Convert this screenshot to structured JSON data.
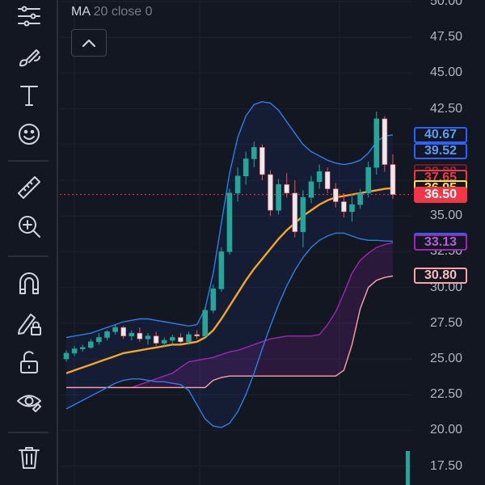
{
  "toolbar": {
    "tools": [
      {
        "name": "indicators-icon"
      },
      {
        "name": "brush-icon"
      },
      {
        "name": "text-tool-icon"
      },
      {
        "name": "emoji-icon"
      },
      {
        "name": "ruler-icon"
      },
      {
        "name": "zoom-in-icon"
      },
      {
        "name": "magnet-icon"
      },
      {
        "name": "lock-drawing-icon"
      },
      {
        "name": "unlock-icon"
      },
      {
        "name": "eye-icon"
      },
      {
        "name": "trash-icon"
      }
    ]
  },
  "legend": {
    "name": "MA",
    "params": "20 close 0"
  },
  "collapse_button": {
    "icon": "chevron-up-icon"
  },
  "price_axis": {
    "ticks": [
      "50.00",
      "47.50",
      "45.00",
      "42.50",
      "40.00",
      "37.50",
      "35.00",
      "32.50",
      "30.00",
      "27.50",
      "25.00",
      "22.50",
      "20.00",
      "17.50"
    ]
  },
  "price_labels": [
    {
      "value": "40.67",
      "color": "#2962ff",
      "text_color": "#5b9cf6"
    },
    {
      "value": "39.52",
      "color": "#2962ff",
      "text_color": "#5b9cf6"
    },
    {
      "value": "38.08",
      "color": "#6b1f26",
      "text_color": "#8c2a30"
    },
    {
      "value": "37.65",
      "color": "#f23645",
      "text_color": "#f23645"
    },
    {
      "value": "36.95",
      "color": "#ff9800",
      "text_color": "#ff9800"
    },
    {
      "value": "36.95",
      "color": "#f7e64a",
      "text_color": "#f7e64a",
      "fill": "#131722"
    },
    {
      "value": "36.50",
      "color": "#f23645",
      "text_color": "#ffffff",
      "fill": "#f23645"
    },
    {
      "value": "33.23",
      "color": "#2962ff",
      "text_color": "#5b9cf6"
    },
    {
      "value": "33.13",
      "color": "#9c27b0",
      "text_color": "#b35fd1"
    },
    {
      "value": "30.80",
      "color": "#f8a5a5",
      "text_color": "#f8bcbc"
    }
  ],
  "chart_data": {
    "type": "candlestick",
    "indicators": [
      "MA 20 close",
      "Bollinger Bands",
      "Ichimoku Cloud"
    ],
    "ylim": [
      17.5,
      50.0
    ],
    "last_price": 36.5,
    "ohlc": [
      [
        25.0,
        25.6,
        24.8,
        25.4
      ],
      [
        25.4,
        25.9,
        25.2,
        25.7
      ],
      [
        25.7,
        26.0,
        25.5,
        25.8
      ],
      [
        25.8,
        26.4,
        25.7,
        26.2
      ],
      [
        26.2,
        26.8,
        26.0,
        26.5
      ],
      [
        26.5,
        27.0,
        26.3,
        26.9
      ],
      [
        26.9,
        27.4,
        26.7,
        27.2
      ],
      [
        27.2,
        27.3,
        26.4,
        26.6
      ],
      [
        26.6,
        27.0,
        26.3,
        26.8
      ],
      [
        26.8,
        27.2,
        26.2,
        26.4
      ],
      [
        26.4,
        26.8,
        26.0,
        26.6
      ],
      [
        26.6,
        26.9,
        25.9,
        26.1
      ],
      [
        26.1,
        26.5,
        25.8,
        26.3
      ],
      [
        26.3,
        26.7,
        26.0,
        26.5
      ],
      [
        26.5,
        26.8,
        26.1,
        26.2
      ],
      [
        26.2,
        26.9,
        26.0,
        26.7
      ],
      [
        26.7,
        27.0,
        26.4,
        26.6
      ],
      [
        26.6,
        28.6,
        26.5,
        28.4
      ],
      [
        28.4,
        30.2,
        28.2,
        29.9
      ],
      [
        29.9,
        32.8,
        29.7,
        32.5
      ],
      [
        32.5,
        36.9,
        32.3,
        36.6
      ],
      [
        36.6,
        38.4,
        36.0,
        37.8
      ],
      [
        37.8,
        39.5,
        37.2,
        39.0
      ],
      [
        39.0,
        40.2,
        38.4,
        39.8
      ],
      [
        39.8,
        40.0,
        37.5,
        37.9
      ],
      [
        37.9,
        38.2,
        35.0,
        35.4
      ],
      [
        35.4,
        37.6,
        35.1,
        37.2
      ],
      [
        37.2,
        38.0,
        36.3,
        36.6
      ],
      [
        36.6,
        37.5,
        33.5,
        33.9
      ],
      [
        33.9,
        36.8,
        32.8,
        36.3
      ],
      [
        36.3,
        37.8,
        35.9,
        37.4
      ],
      [
        37.4,
        38.6,
        36.9,
        38.1
      ],
      [
        38.1,
        38.4,
        36.6,
        36.9
      ],
      [
        36.9,
        37.3,
        35.6,
        36.0
      ],
      [
        36.0,
        36.6,
        34.9,
        35.3
      ],
      [
        35.3,
        36.4,
        34.6,
        35.8
      ],
      [
        35.8,
        36.9,
        35.5,
        36.6
      ],
      [
        36.6,
        38.8,
        36.3,
        38.4
      ],
      [
        38.4,
        42.3,
        37.9,
        41.8
      ],
      [
        41.8,
        42.0,
        38.1,
        38.6
      ],
      [
        38.6,
        39.3,
        36.2,
        36.5
      ]
    ],
    "ma20": [
      24.0,
      24.2,
      24.4,
      24.6,
      24.8,
      25.0,
      25.2,
      25.4,
      25.5,
      25.6,
      25.7,
      25.8,
      25.9,
      26.0,
      26.0,
      26.1,
      26.2,
      26.5,
      27.0,
      27.8,
      28.7,
      29.6,
      30.5,
      31.3,
      32.0,
      32.7,
      33.4,
      34.0,
      34.5,
      35.0,
      35.4,
      35.8,
      36.1,
      36.3,
      36.4,
      36.5,
      36.6,
      36.7,
      36.8,
      36.9,
      36.95
    ],
    "bb_upper": [
      26.5,
      26.6,
      26.7,
      26.8,
      27.0,
      27.2,
      27.4,
      27.6,
      27.7,
      27.8,
      27.8,
      27.7,
      27.6,
      27.5,
      27.4,
      27.3,
      27.4,
      28.5,
      31.0,
      34.5,
      38.0,
      40.5,
      42.0,
      42.8,
      43.0,
      42.9,
      42.4,
      41.6,
      40.8,
      40.0,
      39.5,
      39.2,
      38.9,
      38.7,
      38.6,
      38.7,
      38.9,
      39.4,
      40.2,
      40.6,
      40.67
    ],
    "bb_lower": [
      21.5,
      21.8,
      22.1,
      22.4,
      22.7,
      23.0,
      23.3,
      23.5,
      23.6,
      23.6,
      23.5,
      23.4,
      23.4,
      23.3,
      23.2,
      22.8,
      21.8,
      20.8,
      20.3,
      20.2,
      20.5,
      21.3,
      22.5,
      24.0,
      25.7,
      27.3,
      28.8,
      30.1,
      31.2,
      32.1,
      32.8,
      33.3,
      33.6,
      33.8,
      33.8,
      33.6,
      33.4,
      33.3,
      33.3,
      33.25,
      33.23
    ],
    "cloud_top": [
      23.0,
      23.0,
      23.0,
      23.0,
      23.0,
      23.0,
      23.0,
      23.0,
      23.0,
      23.2,
      23.4,
      23.6,
      23.8,
      24.0,
      24.4,
      24.8,
      24.9,
      25.0,
      25.1,
      25.3,
      25.5,
      25.6,
      25.8,
      26.0,
      26.2,
      26.4,
      26.5,
      26.6,
      26.6,
      26.6,
      26.6,
      26.7,
      27.4,
      28.3,
      29.6,
      31.0,
      31.9,
      32.4,
      32.8,
      33.0,
      33.13
    ],
    "cloud_bottom": [
      23.0,
      23.0,
      23.0,
      23.0,
      23.0,
      23.0,
      23.0,
      23.0,
      23.0,
      23.0,
      23.0,
      23.0,
      23.0,
      23.0,
      23.0,
      23.0,
      23.0,
      23.0,
      23.5,
      23.7,
      23.8,
      23.8,
      23.8,
      23.8,
      23.8,
      23.8,
      23.8,
      23.8,
      23.8,
      23.8,
      23.8,
      23.8,
      23.8,
      23.8,
      24.2,
      26.0,
      28.5,
      30.0,
      30.5,
      30.7,
      30.8
    ]
  }
}
